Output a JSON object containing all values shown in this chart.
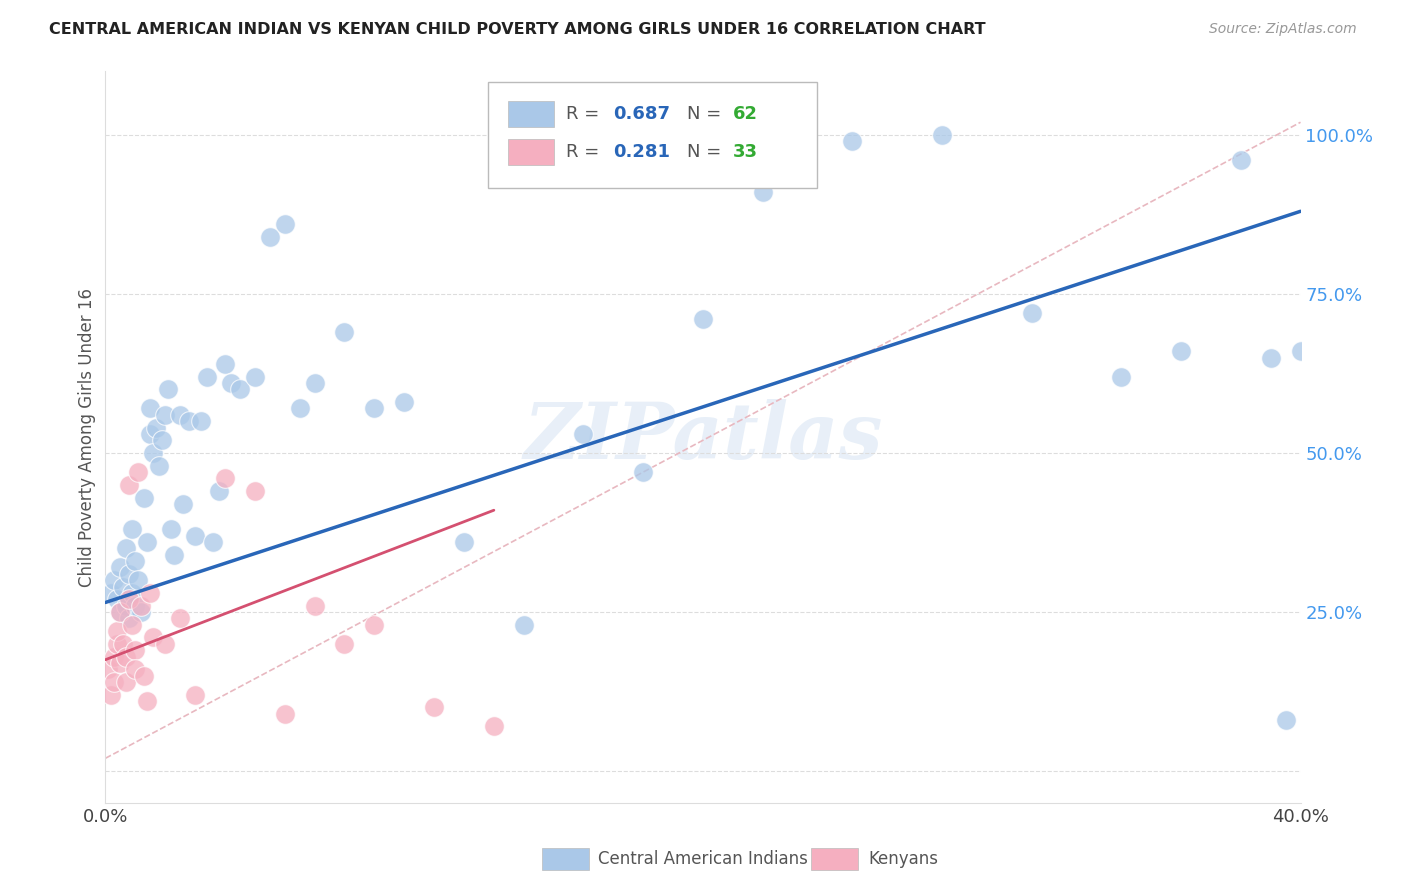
{
  "title": "CENTRAL AMERICAN INDIAN VS KENYAN CHILD POVERTY AMONG GIRLS UNDER 16 CORRELATION CHART",
  "source": "Source: ZipAtlas.com",
  "ylabel": "Child Poverty Among Girls Under 16",
  "xlim": [
    0.0,
    0.4
  ],
  "ylim": [
    -0.05,
    1.1
  ],
  "x_ticks": [
    0.0,
    0.1,
    0.2,
    0.3,
    0.4
  ],
  "x_tick_labels": [
    "0.0%",
    "",
    "",
    "",
    "40.0%"
  ],
  "y_ticks": [
    0.0,
    0.25,
    0.5,
    0.75,
    1.0
  ],
  "y_tick_labels": [
    "",
    "25.0%",
    "50.0%",
    "75.0%",
    "100.0%"
  ],
  "blue_R": "0.687",
  "blue_N": "62",
  "pink_R": "0.281",
  "pink_N": "33",
  "legend_labels": [
    "Central American Indians",
    "Kenyans"
  ],
  "blue_color": "#aac8e8",
  "pink_color": "#f5afc0",
  "blue_line_color": "#2966b8",
  "pink_line_color": "#d45070",
  "diagonal_color": "#e8b8c0",
  "watermark": "ZIPatlas",
  "blue_points_x": [
    0.002,
    0.003,
    0.004,
    0.005,
    0.005,
    0.006,
    0.007,
    0.007,
    0.008,
    0.008,
    0.009,
    0.009,
    0.01,
    0.01,
    0.011,
    0.012,
    0.013,
    0.014,
    0.015,
    0.015,
    0.016,
    0.017,
    0.018,
    0.019,
    0.02,
    0.021,
    0.022,
    0.023,
    0.025,
    0.026,
    0.028,
    0.03,
    0.032,
    0.034,
    0.036,
    0.038,
    0.04,
    0.042,
    0.045,
    0.05,
    0.055,
    0.06,
    0.065,
    0.07,
    0.08,
    0.09,
    0.1,
    0.12,
    0.14,
    0.16,
    0.18,
    0.2,
    0.22,
    0.25,
    0.28,
    0.31,
    0.34,
    0.36,
    0.38,
    0.39,
    0.395,
    0.4
  ],
  "blue_points_y": [
    0.28,
    0.3,
    0.27,
    0.25,
    0.32,
    0.29,
    0.26,
    0.35,
    0.31,
    0.24,
    0.28,
    0.38,
    0.26,
    0.33,
    0.3,
    0.25,
    0.43,
    0.36,
    0.53,
    0.57,
    0.5,
    0.54,
    0.48,
    0.52,
    0.56,
    0.6,
    0.38,
    0.34,
    0.56,
    0.42,
    0.55,
    0.37,
    0.55,
    0.62,
    0.36,
    0.44,
    0.64,
    0.61,
    0.6,
    0.62,
    0.84,
    0.86,
    0.57,
    0.61,
    0.69,
    0.57,
    0.58,
    0.36,
    0.23,
    0.53,
    0.47,
    0.71,
    0.91,
    0.99,
    1.0,
    0.72,
    0.62,
    0.66,
    0.96,
    0.65,
    0.08,
    0.66
  ],
  "pink_points_x": [
    0.001,
    0.002,
    0.003,
    0.003,
    0.004,
    0.004,
    0.005,
    0.005,
    0.006,
    0.007,
    0.007,
    0.008,
    0.008,
    0.009,
    0.01,
    0.01,
    0.011,
    0.012,
    0.013,
    0.014,
    0.015,
    0.016,
    0.02,
    0.025,
    0.03,
    0.04,
    0.05,
    0.06,
    0.07,
    0.08,
    0.09,
    0.11,
    0.13
  ],
  "pink_points_y": [
    0.16,
    0.12,
    0.18,
    0.14,
    0.2,
    0.22,
    0.17,
    0.25,
    0.2,
    0.14,
    0.18,
    0.45,
    0.27,
    0.23,
    0.19,
    0.16,
    0.47,
    0.26,
    0.15,
    0.11,
    0.28,
    0.21,
    0.2,
    0.24,
    0.12,
    0.46,
    0.44,
    0.09,
    0.26,
    0.2,
    0.23,
    0.1,
    0.07
  ],
  "blue_line_x": [
    0.0,
    0.4
  ],
  "blue_line_y": [
    0.265,
    0.88
  ],
  "pink_line_x": [
    0.0,
    0.13
  ],
  "pink_line_y": [
    0.175,
    0.41
  ],
  "diag_line_x": [
    0.0,
    0.4
  ],
  "diag_line_y": [
    0.02,
    1.02
  ]
}
